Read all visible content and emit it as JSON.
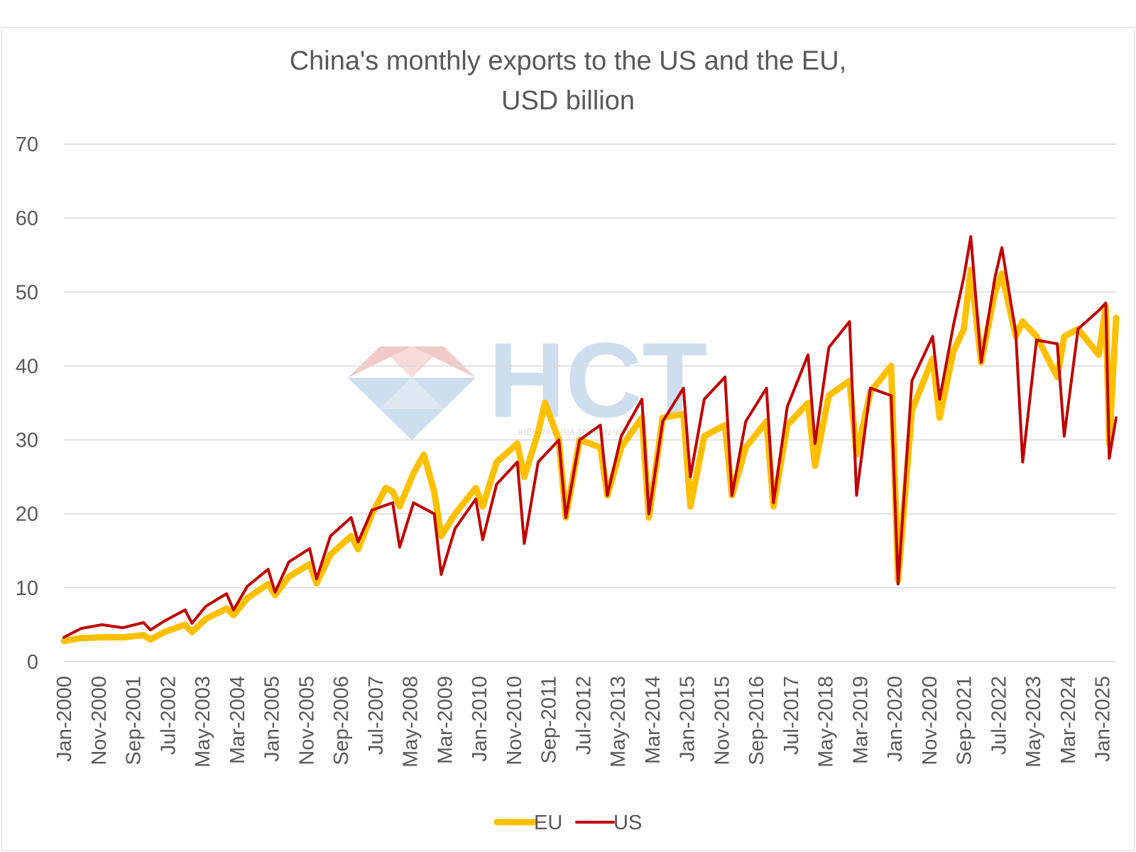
{
  "chart_data": {
    "type": "line",
    "title": "China's monthly exports to the US and the EU,",
    "subtitle": "USD billion",
    "xlabel": "",
    "ylabel": "",
    "ylim": [
      0,
      70
    ],
    "yticks": [
      0,
      10,
      20,
      30,
      40,
      50,
      60,
      70
    ],
    "grid": true,
    "legend_placement": "bottom-center",
    "x_tick_labels": [
      "Jan-2000",
      "Nov-2000",
      "Sep-2001",
      "Jul-2002",
      "May-2003",
      "Mar-2004",
      "Jan-2005",
      "Nov-2005",
      "Sep-2006",
      "Jul-2007",
      "May-2008",
      "Mar-2009",
      "Jan-2010",
      "Nov-2010",
      "Sep-2011",
      "Jul-2012",
      "May-2013",
      "Mar-2014",
      "Jan-2015",
      "Nov-2015",
      "Sep-2016",
      "Jul-2017",
      "May-2018",
      "Mar-2019",
      "Jan-2020",
      "Nov-2020",
      "Sep-2021",
      "Jul-2022",
      "May-2023",
      "Mar-2024",
      "Jan-2025"
    ],
    "x_start": "Jan-2000",
    "x_end": "May-2025",
    "frequency": "monthly",
    "series": [
      {
        "name": "EU",
        "color": "#FFC000",
        "points": [
          [
            "Jan-2000",
            2.8
          ],
          [
            "Jun-2000",
            3.2
          ],
          [
            "Dec-2000",
            3.3
          ],
          [
            "Jun-2001",
            3.3
          ],
          [
            "Dec-2001",
            3.6
          ],
          [
            "Feb-2002",
            3.0
          ],
          [
            "Jun-2002",
            4.0
          ],
          [
            "Dec-2002",
            5.0
          ],
          [
            "Feb-2003",
            4.0
          ],
          [
            "Jun-2003",
            5.8
          ],
          [
            "Dec-2003",
            7.2
          ],
          [
            "Feb-2004",
            6.3
          ],
          [
            "Jun-2004",
            8.6
          ],
          [
            "Dec-2004",
            10.5
          ],
          [
            "Feb-2005",
            9.0
          ],
          [
            "Jun-2005",
            11.5
          ],
          [
            "Dec-2005",
            13.2
          ],
          [
            "Feb-2006",
            10.6
          ],
          [
            "Jun-2006",
            14.5
          ],
          [
            "Dec-2006",
            17.0
          ],
          [
            "Feb-2007",
            15.2
          ],
          [
            "Jun-2007",
            20.0
          ],
          [
            "Oct-2007",
            23.5
          ],
          [
            "Dec-2007",
            23.0
          ],
          [
            "Feb-2008",
            21.0
          ],
          [
            "Jun-2008",
            25.5
          ],
          [
            "Sep-2008",
            28.0
          ],
          [
            "Dec-2008",
            23.0
          ],
          [
            "Feb-2009",
            17.0
          ],
          [
            "Jun-2009",
            20.0
          ],
          [
            "Dec-2009",
            23.5
          ],
          [
            "Feb-2010",
            21.0
          ],
          [
            "Jun-2010",
            27.0
          ],
          [
            "Dec-2010",
            29.5
          ],
          [
            "Feb-2011",
            25.0
          ],
          [
            "Jun-2011",
            31.0
          ],
          [
            "Aug-2011",
            35.0
          ],
          [
            "Dec-2011",
            30.0
          ],
          [
            "Feb-2012",
            19.5
          ],
          [
            "Jun-2012",
            30.0
          ],
          [
            "Dec-2012",
            29.0
          ],
          [
            "Feb-2013",
            22.5
          ],
          [
            "Jun-2013",
            29.0
          ],
          [
            "Dec-2013",
            33.0
          ],
          [
            "Feb-2014",
            19.5
          ],
          [
            "Jun-2014",
            33.0
          ],
          [
            "Dec-2014",
            33.5
          ],
          [
            "Feb-2015",
            21.0
          ],
          [
            "Jun-2015",
            30.5
          ],
          [
            "Dec-2015",
            32.0
          ],
          [
            "Feb-2016",
            22.5
          ],
          [
            "Jun-2016",
            29.0
          ],
          [
            "Dec-2016",
            32.5
          ],
          [
            "Feb-2017",
            21.0
          ],
          [
            "Jun-2017",
            32.0
          ],
          [
            "Dec-2017",
            35.0
          ],
          [
            "Feb-2018",
            26.5
          ],
          [
            "Jun-2018",
            36.0
          ],
          [
            "Dec-2018",
            38.0
          ],
          [
            "Feb-2019",
            28.0
          ],
          [
            "Jun-2019",
            36.5
          ],
          [
            "Dec-2019",
            40.0
          ],
          [
            "Feb-2020",
            11.0
          ],
          [
            "Jun-2020",
            34.0
          ],
          [
            "Dec-2020",
            41.0
          ],
          [
            "Feb-2021",
            33.0
          ],
          [
            "Jun-2021",
            42.0
          ],
          [
            "Sep-2021",
            45.0
          ],
          [
            "Nov-2021",
            53.0
          ],
          [
            "Feb-2022",
            40.5
          ],
          [
            "Jun-2022",
            50.0
          ],
          [
            "Aug-2022",
            52.5
          ],
          [
            "Dec-2022",
            44.0
          ],
          [
            "Feb-2023",
            46.0
          ],
          [
            "Jun-2023",
            44.0
          ],
          [
            "Dec-2023",
            38.5
          ],
          [
            "Feb-2024",
            44.0
          ],
          [
            "Jun-2024",
            45.0
          ],
          [
            "Dec-2024",
            41.5
          ],
          [
            "Feb-2025",
            48.0
          ],
          [
            "Mar-2025",
            29.5
          ],
          [
            "May-2025",
            46.5
          ]
        ]
      },
      {
        "name": "US",
        "color": "#C00000",
        "points": [
          [
            "Jan-2000",
            3.3
          ],
          [
            "Jun-2000",
            4.5
          ],
          [
            "Dec-2000",
            5.0
          ],
          [
            "Jun-2001",
            4.6
          ],
          [
            "Dec-2001",
            5.3
          ],
          [
            "Feb-2002",
            4.3
          ],
          [
            "Jun-2002",
            5.5
          ],
          [
            "Dec-2002",
            7.0
          ],
          [
            "Feb-2003",
            5.2
          ],
          [
            "Jun-2003",
            7.5
          ],
          [
            "Dec-2003",
            9.2
          ],
          [
            "Feb-2004",
            7.0
          ],
          [
            "Jun-2004",
            10.2
          ],
          [
            "Dec-2004",
            12.5
          ],
          [
            "Feb-2005",
            9.4
          ],
          [
            "Jun-2005",
            13.5
          ],
          [
            "Dec-2005",
            15.3
          ],
          [
            "Feb-2006",
            11.2
          ],
          [
            "Jun-2006",
            17.0
          ],
          [
            "Dec-2006",
            19.5
          ],
          [
            "Feb-2007",
            16.2
          ],
          [
            "Jun-2007",
            20.5
          ],
          [
            "Dec-2007",
            21.5
          ],
          [
            "Feb-2008",
            15.5
          ],
          [
            "Jun-2008",
            21.5
          ],
          [
            "Dec-2008",
            20.0
          ],
          [
            "Feb-2009",
            11.8
          ],
          [
            "Jun-2009",
            18.0
          ],
          [
            "Dec-2009",
            22.0
          ],
          [
            "Feb-2010",
            16.5
          ],
          [
            "Jun-2010",
            24.0
          ],
          [
            "Dec-2010",
            27.0
          ],
          [
            "Feb-2011",
            16.0
          ],
          [
            "Jun-2011",
            27.0
          ],
          [
            "Dec-2011",
            30.0
          ],
          [
            "Feb-2012",
            19.5
          ],
          [
            "Jun-2012",
            30.0
          ],
          [
            "Dec-2012",
            32.0
          ],
          [
            "Feb-2013",
            22.5
          ],
          [
            "Jun-2013",
            30.5
          ],
          [
            "Dec-2013",
            35.5
          ],
          [
            "Feb-2014",
            20.0
          ],
          [
            "Jun-2014",
            32.5
          ],
          [
            "Dec-2014",
            37.0
          ],
          [
            "Feb-2015",
            25.0
          ],
          [
            "Jun-2015",
            35.5
          ],
          [
            "Dec-2015",
            38.5
          ],
          [
            "Feb-2016",
            22.5
          ],
          [
            "Jun-2016",
            32.5
          ],
          [
            "Dec-2016",
            37.0
          ],
          [
            "Feb-2017",
            21.5
          ],
          [
            "Jun-2017",
            34.5
          ],
          [
            "Dec-2017",
            41.5
          ],
          [
            "Feb-2018",
            29.5
          ],
          [
            "Jun-2018",
            42.5
          ],
          [
            "Dec-2018",
            46.0
          ],
          [
            "Feb-2019",
            22.5
          ],
          [
            "Jun-2019",
            37.0
          ],
          [
            "Dec-2019",
            36.0
          ],
          [
            "Feb-2020",
            10.5
          ],
          [
            "Jun-2020",
            38.0
          ],
          [
            "Dec-2020",
            44.0
          ],
          [
            "Feb-2021",
            35.5
          ],
          [
            "Jun-2021",
            45.5
          ],
          [
            "Sep-2021",
            52.0
          ],
          [
            "Nov-2021",
            57.5
          ],
          [
            "Feb-2022",
            40.5
          ],
          [
            "Jun-2022",
            52.0
          ],
          [
            "Aug-2022",
            56.0
          ],
          [
            "Dec-2022",
            44.5
          ],
          [
            "Feb-2023",
            27.0
          ],
          [
            "Jun-2023",
            43.5
          ],
          [
            "Dec-2023",
            43.0
          ],
          [
            "Feb-2024",
            30.5
          ],
          [
            "Jun-2024",
            45.0
          ],
          [
            "Dec-2024",
            47.5
          ],
          [
            "Feb-2025",
            48.5
          ],
          [
            "Mar-2025",
            27.5
          ],
          [
            "May-2025",
            33.0
          ]
        ]
      }
    ],
    "legend": [
      "EU",
      "US"
    ]
  },
  "watermark": {
    "logo_text": "HCT",
    "tagline": "KIẾN TẠO GIÁ TRỊ BỀN VỮNG",
    "colors": {
      "red": "#E8A0A0",
      "blue": "#A9C4E2"
    }
  },
  "colors": {
    "grid": "#d9d9d9",
    "text": "#595959"
  }
}
